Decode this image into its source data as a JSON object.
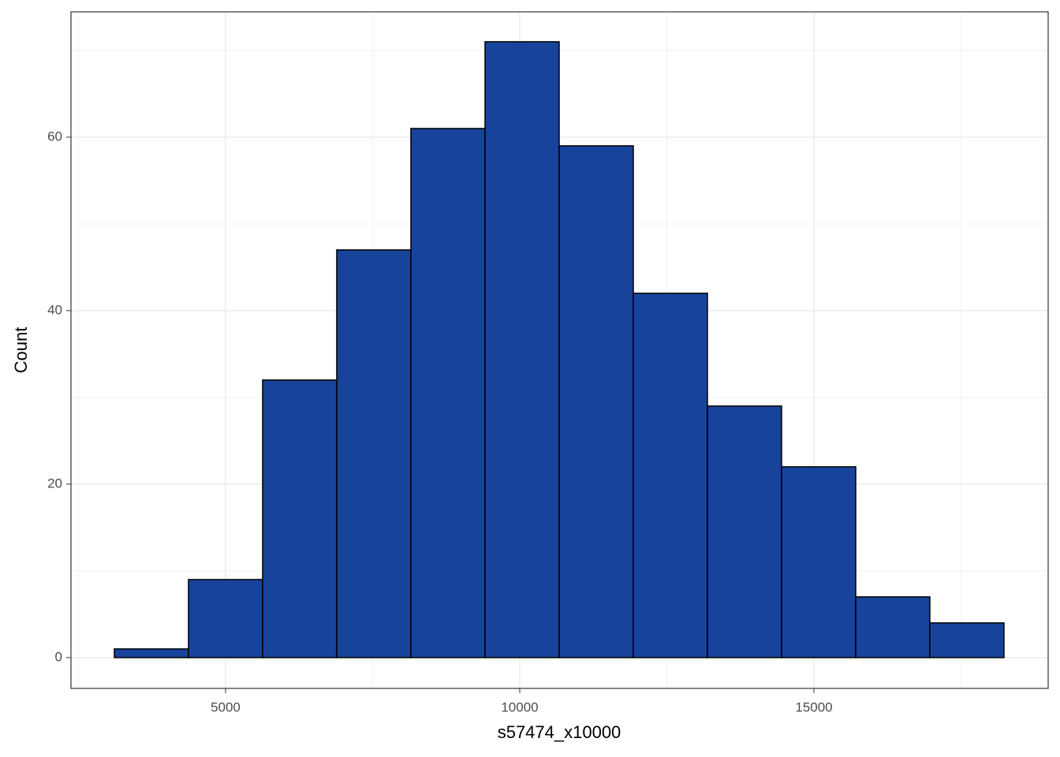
{
  "chart_data": {
    "type": "histogram",
    "xlabel": "s57474_x10000",
    "ylabel": "Count",
    "bins": [
      3110,
      4370,
      5630,
      6890,
      8150,
      9410,
      10670,
      11930,
      13190,
      14450,
      15710,
      16970,
      18230
    ],
    "values": [
      1,
      9,
      32,
      47,
      61,
      71,
      59,
      42,
      29,
      22,
      7,
      4
    ],
    "color": "#17439b",
    "edgecolor": "#000000",
    "xlim": [
      2373,
      18981
    ],
    "xticks": [
      5000,
      10000,
      15000
    ],
    "ylim": [
      -3.55,
      74.45
    ],
    "yticks": [
      0,
      20,
      40,
      60
    ],
    "grid": true
  }
}
